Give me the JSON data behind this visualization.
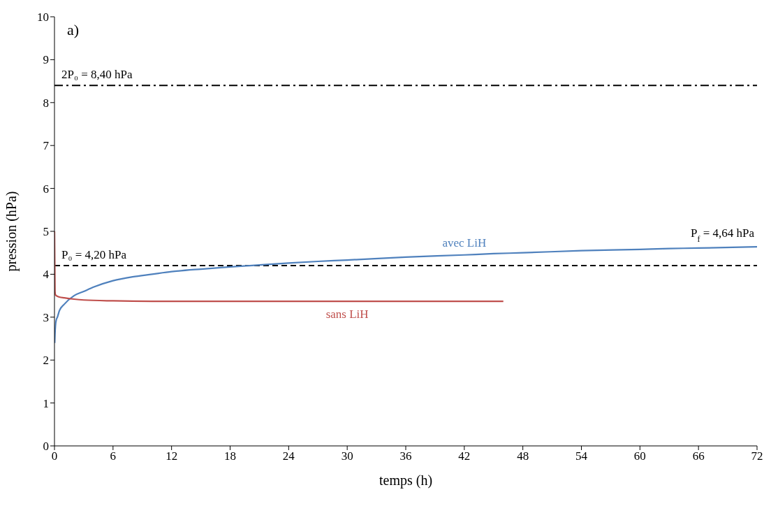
{
  "chart_data": {
    "type": "line",
    "xlabel": "temps (h)",
    "ylabel": "pression (hPa)",
    "xlim": [
      0,
      72
    ],
    "xticks": [
      0,
      6,
      12,
      18,
      24,
      30,
      36,
      42,
      48,
      54,
      60,
      66,
      72
    ],
    "ylim": [
      0,
      10
    ],
    "yticks": [
      0,
      1,
      2,
      3,
      4,
      5,
      6,
      7,
      8,
      9,
      10
    ],
    "marker": "none",
    "series": [
      {
        "name": "avec LiH",
        "color": "#4f81bd",
        "x": [
          0.02,
          0.05,
          0.1,
          0.2,
          0.3,
          0.5,
          1,
          2,
          3,
          4,
          6,
          8,
          10,
          12,
          15,
          18,
          20,
          24,
          27,
          30,
          36,
          42,
          45,
          48,
          54,
          60,
          63,
          66,
          72
        ],
        "values": [
          2.4,
          2.6,
          2.8,
          2.95,
          3.0,
          3.15,
          3.3,
          3.5,
          3.6,
          3.7,
          3.85,
          3.94,
          4.0,
          4.06,
          4.12,
          4.17,
          4.2,
          4.26,
          4.3,
          4.33,
          4.4,
          4.45,
          4.48,
          4.5,
          4.55,
          4.58,
          4.6,
          4.61,
          4.64
        ]
      },
      {
        "name": "sans LiH",
        "color": "#c0504d",
        "x": [
          0,
          0.05,
          0.1,
          0.2,
          0.5,
          1,
          2,
          3,
          6,
          10,
          20,
          30,
          46
        ],
        "values": [
          5.0,
          3.6,
          3.52,
          3.5,
          3.47,
          3.45,
          3.42,
          3.4,
          3.38,
          3.37,
          3.37,
          3.37,
          3.37
        ]
      }
    ],
    "ref_lines": [
      {
        "axis": "y",
        "value": 8.4,
        "label": "2P₀ = 8,40 hPa",
        "color": "#000000",
        "line_style": "dashdot"
      },
      {
        "axis": "y",
        "value": 4.2,
        "label": "P₀ = 4,20 hPa",
        "color": "#000000",
        "line_style": "dashed"
      }
    ],
    "annotations": [
      "a)",
      {
        "text": "P$_{f}$ = 4,64 hPa",
        "x": 72,
        "y": 4.64
      }
    ]
  }
}
